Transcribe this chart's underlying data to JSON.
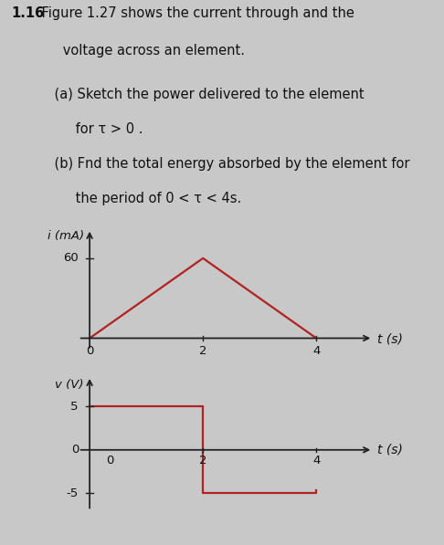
{
  "line1_bold": "1.16",
  "line1_rest": " Figure 1.27 shows the current through and the",
  "line2": "      voltage across an element.",
  "line3": "    (a) Sketch the power delivered to the element",
  "line4": "         for τ > 0 .",
  "line5": "    (b) Fnd the total energy absorbed by the element for",
  "line6": "         the period of 0 < τ < 4s.",
  "plot1": {
    "ylabel": "i (mA)",
    "xlabel": "t (s)",
    "x": [
      0,
      2,
      4
    ],
    "y": [
      0,
      60,
      0
    ],
    "xlim": [
      -0.25,
      5.0
    ],
    "ylim": [
      -10,
      82
    ],
    "line_color": "#b22222",
    "line_width": 1.6
  },
  "plot2": {
    "ylabel": "v (V)",
    "xlabel": "t (s)",
    "vx": [
      0,
      2,
      2,
      4,
      4
    ],
    "vy": [
      5,
      5,
      -5,
      -5,
      -4.6
    ],
    "xlim": [
      -0.25,
      5.0
    ],
    "ylim": [
      -7.5,
      8.5
    ],
    "line_color": "#b22222",
    "line_width": 1.6
  },
  "background_color": "#c8c8c8",
  "text_color": "#111111",
  "axis_color": "#222222"
}
